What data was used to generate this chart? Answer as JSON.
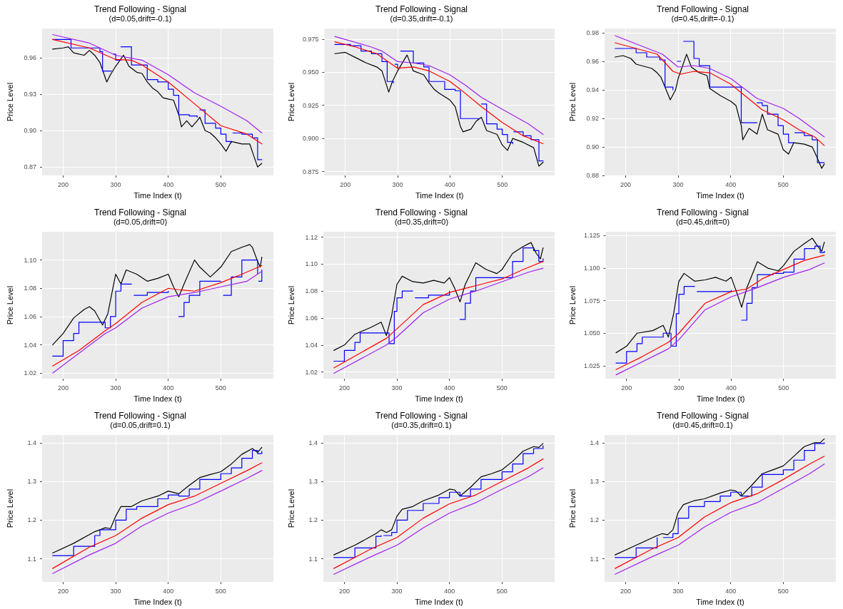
{
  "chart_data": [
    {
      "type": "line",
      "title": "Trend Following - Signal",
      "subtitle": "(d=0.05,drift=-0.1)",
      "xlabel": "Time Index (t)",
      "ylabel": "Price Level",
      "xlim": [
        160,
        600
      ],
      "xticks": [
        200,
        300,
        400,
        500
      ],
      "ylim": [
        0.863,
        0.984
      ],
      "yticks": [
        0.87,
        {
          "value": 0.9,
          "label": "0.90"
        },
        0.93,
        0.96
      ],
      "grid": true,
      "marker": "none",
      "series": [
        {
          "color": "#000000",
          "x": [
            180,
            200,
            210,
            220,
            240,
            250,
            260,
            270,
            283,
            290,
            300,
            315,
            325,
            340,
            350,
            360,
            370,
            380,
            390,
            400,
            410,
            420,
            425,
            435,
            445,
            455,
            460,
            470,
            480,
            490,
            500,
            510,
            520,
            540,
            555,
            562,
            570,
            578
          ],
          "values": [
            0.967,
            0.968,
            0.969,
            0.964,
            0.962,
            0.966,
            0.962,
            0.956,
            0.94,
            0.946,
            0.953,
            0.962,
            0.953,
            0.948,
            0.947,
            0.94,
            0.935,
            0.932,
            0.927,
            0.926,
            0.925,
            0.913,
            0.903,
            0.908,
            0.903,
            0.908,
            0.911,
            0.9,
            0.898,
            0.894,
            0.889,
            0.883,
            0.891,
            0.889,
            0.889,
            0.88,
            0.87,
            0.873
          ]
        },
        {
          "type": "step",
          "color": "#0000ff",
          "x": [
            180,
            210,
            215,
            265,
            270,
            275,
            292
          ],
          "values": [
            0.975,
            0.975,
            0.968,
            0.968,
            0.965,
            0.949,
            0.949
          ]
        },
        {
          "type": "step",
          "color": "#0000ff",
          "x": [
            295,
            300,
            310
          ],
          "values": [
            0.963,
            0.958,
            0.958
          ]
        },
        {
          "type": "step",
          "color": "#0000ff",
          "x": [
            310,
            320,
            330,
            350,
            360,
            380,
            400,
            410,
            420,
            440,
            455
          ],
          "values": [
            0.969,
            0.969,
            0.954,
            0.954,
            0.942,
            0.94,
            0.934,
            0.929,
            0.913,
            0.912,
            0.911
          ]
        },
        {
          "type": "step",
          "color": "#0000ff",
          "x": [
            460,
            470,
            490,
            500,
            510,
            520
          ],
          "values": [
            0.917,
            0.906,
            0.902,
            0.897,
            0.891,
            0.89
          ]
        },
        {
          "type": "step",
          "color": "#0000ff",
          "x": [
            523,
            540,
            560,
            570,
            578
          ],
          "values": [
            0.898,
            0.897,
            0.894,
            0.876,
            0.876
          ]
        },
        {
          "color": "#ff0000",
          "x": [
            180,
            250,
            300,
            330,
            350,
            400,
            450,
            500,
            550,
            578
          ],
          "values": [
            0.975,
            0.968,
            0.9585,
            0.958,
            0.954,
            0.94,
            0.922,
            0.904,
            0.897,
            0.889
          ]
        },
        {
          "color": "#a020f0",
          "x": [
            180,
            250,
            300,
            350,
            400,
            450,
            500,
            550,
            578
          ],
          "values": [
            0.979,
            0.972,
            0.962,
            0.958,
            0.946,
            0.931,
            0.92,
            0.908,
            0.898
          ]
        }
      ]
    },
    {
      "type": "line",
      "title": "Trend Following - Signal",
      "subtitle": "(d=0.35,drift=-0.1)",
      "xlabel": "Time Index (t)",
      "ylabel": "Price Level",
      "xlim": [
        160,
        600
      ],
      "xticks": [
        200,
        300,
        400,
        500
      ],
      "ylim": [
        0.872,
        0.983
      ],
      "yticks": [
        0.875,
        {
          "value": 0.9,
          "label": "0.900"
        },
        0.925,
        {
          "value": 0.95,
          "label": "0.950"
        },
        0.975
      ],
      "grid": true,
      "marker": "none",
      "series": [
        {
          "color": "#000000",
          "x": [
            180,
            200,
            220,
            240,
            260,
            270,
            283,
            290,
            300,
            318,
            330,
            350,
            360,
            370,
            380,
            400,
            410,
            420,
            425,
            440,
            450,
            460,
            470,
            490,
            500,
            510,
            520,
            540,
            560,
            570,
            578
          ],
          "values": [
            0.964,
            0.965,
            0.961,
            0.957,
            0.954,
            0.951,
            0.935,
            0.943,
            0.951,
            0.963,
            0.951,
            0.948,
            0.942,
            0.937,
            0.934,
            0.929,
            0.924,
            0.909,
            0.905,
            0.907,
            0.913,
            0.916,
            0.906,
            0.903,
            0.895,
            0.891,
            0.9,
            0.897,
            0.893,
            0.879,
            0.882
          ]
        },
        {
          "type": "step",
          "color": "#0000ff",
          "x": [
            180,
            210,
            230,
            250,
            270,
            280,
            292
          ],
          "values": [
            0.971,
            0.97,
            0.966,
            0.964,
            0.958,
            0.943,
            0.942
          ]
        },
        {
          "type": "step",
          "color": "#0000ff",
          "x": [
            295,
            300,
            305
          ],
          "values": [
            0.956,
            0.953,
            0.953
          ]
        },
        {
          "type": "step",
          "color": "#0000ff",
          "x": [
            306,
            325,
            330,
            350,
            360,
            380,
            390,
            410,
            420,
            455
          ],
          "values": [
            0.966,
            0.966,
            0.957,
            0.954,
            0.943,
            0.943,
            0.937,
            0.936,
            0.915,
            0.915
          ]
        },
        {
          "type": "step",
          "color": "#0000ff",
          "x": [
            460,
            470,
            490,
            500,
            510,
            520
          ],
          "values": [
            0.926,
            0.911,
            0.907,
            0.903,
            0.897,
            0.896
          ]
        },
        {
          "type": "step",
          "color": "#0000ff",
          "x": [
            522,
            540,
            555,
            570,
            578
          ],
          "values": [
            0.905,
            0.902,
            0.899,
            0.883,
            0.883
          ]
        },
        {
          "color": "#ff0000",
          "x": [
            180,
            220,
            260,
            300,
            330,
            360,
            400,
            420,
            460,
            500,
            540,
            578
          ],
          "values": [
            0.973,
            0.969,
            0.964,
            0.953,
            0.954,
            0.951,
            0.943,
            0.937,
            0.924,
            0.912,
            0.902,
            0.896
          ]
        },
        {
          "color": "#a020f0",
          "x": [
            180,
            250,
            270,
            300,
            330,
            360,
            400,
            430,
            460,
            500,
            550,
            578
          ],
          "values": [
            0.977,
            0.969,
            0.966,
            0.958,
            0.957,
            0.955,
            0.948,
            0.94,
            0.931,
            0.922,
            0.911,
            0.903
          ]
        }
      ]
    },
    {
      "type": "line",
      "title": "Trend Following - Signal",
      "subtitle": "(d=0.45,drift=-0.1)",
      "xlabel": "Time Index (t)",
      "ylabel": "Price Level",
      "xlim": [
        160,
        600
      ],
      "xticks": [
        200,
        300,
        400,
        500
      ],
      "ylim": [
        0.88,
        0.983
      ],
      "yticks": [
        0.88,
        {
          "value": 0.9,
          "label": "0.90"
        },
        0.92,
        0.94,
        0.96,
        0.98
      ],
      "grid": true,
      "marker": "none",
      "series": [
        {
          "color": "#000000",
          "x": [
            180,
            195,
            210,
            220,
            250,
            260,
            267,
            285,
            295,
            300,
            316,
            325,
            340,
            355,
            360,
            380,
            400,
            410,
            420,
            423,
            435,
            450,
            460,
            470,
            490,
            500,
            510,
            520,
            540,
            555,
            565,
            573,
            578
          ],
          "values": [
            0.963,
            0.964,
            0.962,
            0.958,
            0.955,
            0.952,
            0.949,
            0.933,
            0.94,
            0.948,
            0.965,
            0.956,
            0.952,
            0.95,
            0.941,
            0.936,
            0.932,
            0.929,
            0.915,
            0.905,
            0.913,
            0.909,
            0.923,
            0.912,
            0.909,
            0.898,
            0.895,
            0.903,
            0.902,
            0.9,
            0.892,
            0.885,
            0.888
          ]
        },
        {
          "type": "step",
          "color": "#0000ff",
          "x": [
            180,
            210,
            220,
            240,
            265,
            275,
            290
          ],
          "values": [
            0.969,
            0.969,
            0.966,
            0.963,
            0.961,
            0.942,
            0.94
          ]
        },
        {
          "type": "step",
          "color": "#0000ff",
          "x": [
            298,
            305
          ],
          "values": [
            0.96,
            0.96
          ]
        },
        {
          "type": "step",
          "color": "#0000ff",
          "x": [
            310,
            320,
            330,
            340,
            355,
            360,
            400,
            420,
            450
          ],
          "values": [
            0.974,
            0.974,
            0.962,
            0.957,
            0.957,
            0.942,
            0.942,
            0.917,
            0.917
          ]
        },
        {
          "type": "step",
          "color": "#0000ff",
          "x": [
            450,
            460,
            470,
            490,
            500,
            510,
            520
          ],
          "values": [
            0.931,
            0.929,
            0.923,
            0.915,
            0.909,
            0.903,
            0.903
          ]
        },
        {
          "type": "step",
          "color": "#0000ff",
          "x": [
            522,
            540,
            555,
            565,
            578
          ],
          "values": [
            0.91,
            0.908,
            0.905,
            0.889,
            0.889
          ]
        },
        {
          "color": "#ff0000",
          "x": [
            180,
            260,
            290,
            305,
            330,
            360,
            400,
            430,
            460,
            500,
            530,
            560,
            578
          ],
          "values": [
            0.973,
            0.965,
            0.953,
            0.951,
            0.953,
            0.952,
            0.944,
            0.935,
            0.926,
            0.919,
            0.912,
            0.907,
            0.901
          ]
        },
        {
          "color": "#a020f0",
          "x": [
            180,
            270,
            300,
            330,
            360,
            400,
            450,
            500,
            530,
            578
          ],
          "values": [
            0.978,
            0.965,
            0.956,
            0.957,
            0.955,
            0.948,
            0.934,
            0.927,
            0.92,
            0.907
          ]
        }
      ]
    },
    {
      "type": "line",
      "title": "Trend Following - Signal",
      "subtitle": "(d=0.05,drift=0)",
      "xlabel": "Time Index (t)",
      "ylabel": "Price Level",
      "xlim": [
        160,
        600
      ],
      "xticks": [
        200,
        300,
        400,
        500
      ],
      "ylim": [
        1.016,
        1.12
      ],
      "yticks": [
        1.02,
        1.04,
        1.06,
        1.08,
        {
          "value": 1.1,
          "label": "1.10"
        }
      ],
      "grid": true,
      "marker": "none",
      "series": [
        {
          "color": "#000000",
          "x": [
            180,
            200,
            220,
            240,
            250,
            260,
            275,
            285,
            300,
            310,
            320,
            340,
            360,
            380,
            400,
            410,
            420,
            430,
            450,
            460,
            480,
            500,
            520,
            540,
            555,
            560,
            570,
            575,
            578
          ],
          "values": [
            1.04,
            1.048,
            1.059,
            1.065,
            1.067,
            1.064,
            1.054,
            1.062,
            1.09,
            1.083,
            1.093,
            1.09,
            1.085,
            1.087,
            1.09,
            1.081,
            1.074,
            1.083,
            1.1,
            1.095,
            1.088,
            1.095,
            1.106,
            1.109,
            1.111,
            1.109,
            1.099,
            1.095,
            1.102
          ]
        },
        {
          "type": "step",
          "color": "#0000ff",
          "x": [
            180,
            200,
            220,
            230,
            265,
            280,
            290,
            300,
            310,
            330
          ],
          "values": [
            1.032,
            1.043,
            1.048,
            1.056,
            1.056,
            1.052,
            1.06,
            1.078,
            1.083,
            1.083
          ]
        },
        {
          "type": "step",
          "color": "#0000ff",
          "x": [
            335,
            360,
            400
          ],
          "values": [
            1.075,
            1.077,
            1.078
          ]
        },
        {
          "type": "step",
          "color": "#0000ff",
          "x": [
            420,
            430,
            440,
            455,
            460,
            500
          ],
          "values": [
            1.06,
            1.07,
            1.075,
            1.075,
            1.085,
            1.085
          ]
        },
        {
          "type": "step",
          "color": "#0000ff",
          "x": [
            505,
            520,
            540,
            560,
            570
          ],
          "values": [
            1.075,
            1.088,
            1.1,
            1.1,
            1.09
          ]
        },
        {
          "type": "step",
          "color": "#0000ff",
          "x": [
            572,
            578
          ],
          "values": [
            1.085,
            1.093
          ]
        },
        {
          "color": "#ff0000",
          "x": [
            180,
            230,
            280,
            300,
            350,
            400,
            420,
            450,
            500,
            540,
            578
          ],
          "values": [
            1.025,
            1.036,
            1.05,
            1.055,
            1.07,
            1.08,
            1.079,
            1.078,
            1.084,
            1.09,
            1.096
          ]
        },
        {
          "color": "#a020f0",
          "x": [
            180,
            280,
            300,
            350,
            400,
            450,
            500,
            550,
            578
          ],
          "values": [
            1.02,
            1.048,
            1.052,
            1.066,
            1.074,
            1.077,
            1.081,
            1.085,
            1.092
          ]
        }
      ]
    },
    {
      "type": "line",
      "title": "Trend Following - Signal",
      "subtitle": "(d=0.35,drift=0)",
      "xlabel": "Time Index (t)",
      "ylabel": "Price Level",
      "xlim": [
        160,
        600
      ],
      "xticks": [
        200,
        300,
        400,
        500
      ],
      "ylim": [
        1.015,
        1.124
      ],
      "yticks": [
        1.02,
        1.04,
        1.06,
        1.08,
        {
          "value": 1.1,
          "label": "1.10"
        },
        1.12
      ],
      "grid": true,
      "marker": "none",
      "series": [
        {
          "color": "#000000",
          "x": [
            180,
            200,
            220,
            250,
            270,
            280,
            290,
            300,
            310,
            330,
            350,
            370,
            390,
            400,
            410,
            420,
            430,
            450,
            470,
            490,
            500,
            520,
            540,
            555,
            565,
            573,
            578
          ],
          "values": [
            1.036,
            1.04,
            1.048,
            1.053,
            1.057,
            1.047,
            1.062,
            1.085,
            1.091,
            1.087,
            1.086,
            1.088,
            1.086,
            1.09,
            1.082,
            1.072,
            1.085,
            1.101,
            1.096,
            1.093,
            1.096,
            1.108,
            1.113,
            1.116,
            1.108,
            1.104,
            1.112
          ]
        },
        {
          "type": "step",
          "color": "#0000ff",
          "x": [
            180,
            200,
            220,
            230,
            270,
            285,
            295,
            300,
            310,
            330
          ],
          "values": [
            1.028,
            1.036,
            1.042,
            1.049,
            1.049,
            1.041,
            1.065,
            1.075,
            1.08,
            1.08
          ]
        },
        {
          "type": "step",
          "color": "#0000ff",
          "x": [
            335,
            360,
            400
          ],
          "values": [
            1.075,
            1.077,
            1.08
          ]
        },
        {
          "type": "step",
          "color": "#0000ff",
          "x": [
            420,
            430,
            440,
            450,
            480,
            500,
            520,
            540,
            560,
            570,
            578
          ],
          "values": [
            1.059,
            1.071,
            1.08,
            1.09,
            1.09,
            1.09,
            1.102,
            1.112,
            1.11,
            1.102,
            1.104
          ]
        },
        {
          "color": "#ff0000",
          "x": [
            180,
            230,
            280,
            300,
            350,
            400,
            430,
            460,
            500,
            540,
            578
          ],
          "values": [
            1.023,
            1.034,
            1.045,
            1.052,
            1.07,
            1.079,
            1.082,
            1.085,
            1.089,
            1.096,
            1.102
          ]
        },
        {
          "color": "#a020f0",
          "x": [
            180,
            280,
            300,
            350,
            400,
            450,
            500,
            550,
            578
          ],
          "values": [
            1.019,
            1.04,
            1.046,
            1.064,
            1.074,
            1.08,
            1.087,
            1.094,
            1.097
          ]
        }
      ]
    },
    {
      "type": "line",
      "title": "Trend Following - Signal",
      "subtitle": "(d=0.45,drift=0)",
      "xlabel": "Time Index (t)",
      "ylabel": "Price Level",
      "xlim": [
        160,
        600
      ],
      "xticks": [
        200,
        300,
        400,
        500
      ],
      "ylim": [
        1.015,
        1.128
      ],
      "yticks": [
        1.025,
        {
          "value": 1.05,
          "label": "1.050"
        },
        1.075,
        {
          "value": 1.1,
          "label": "1.100"
        },
        1.125
      ],
      "grid": true,
      "marker": "none",
      "series": [
        {
          "color": "#000000",
          "x": [
            180,
            200,
            220,
            250,
            270,
            280,
            290,
            300,
            310,
            330,
            350,
            370,
            390,
            400,
            410,
            420,
            430,
            450,
            470,
            490,
            500,
            520,
            540,
            555,
            565,
            573,
            578
          ],
          "values": [
            1.035,
            1.04,
            1.05,
            1.052,
            1.056,
            1.047,
            1.065,
            1.09,
            1.096,
            1.09,
            1.091,
            1.093,
            1.09,
            1.093,
            1.082,
            1.07,
            1.085,
            1.105,
            1.1,
            1.098,
            1.102,
            1.113,
            1.119,
            1.123,
            1.117,
            1.113,
            1.12
          ]
        },
        {
          "type": "step",
          "color": "#0000ff",
          "x": [
            180,
            200,
            220,
            230,
            270,
            285,
            295,
            300,
            310,
            330
          ],
          "values": [
            1.027,
            1.036,
            1.042,
            1.047,
            1.05,
            1.04,
            1.065,
            1.08,
            1.086,
            1.086
          ]
        },
        {
          "type": "step",
          "color": "#0000ff",
          "x": [
            335,
            360,
            400
          ],
          "values": [
            1.082,
            1.082,
            1.083
          ]
        },
        {
          "type": "step",
          "color": "#0000ff",
          "x": [
            420,
            430,
            440,
            450,
            480,
            500,
            520,
            540,
            560,
            570,
            578
          ],
          "values": [
            1.06,
            1.073,
            1.085,
            1.095,
            1.096,
            1.097,
            1.107,
            1.115,
            1.117,
            1.112,
            1.113
          ]
        },
        {
          "color": "#ff0000",
          "x": [
            180,
            230,
            280,
            300,
            350,
            400,
            430,
            460,
            500,
            540,
            578
          ],
          "values": [
            1.022,
            1.032,
            1.043,
            1.05,
            1.073,
            1.082,
            1.084,
            1.092,
            1.099,
            1.106,
            1.11
          ]
        },
        {
          "color": "#a020f0",
          "x": [
            180,
            280,
            300,
            350,
            400,
            450,
            500,
            550,
            578
          ],
          "values": [
            1.018,
            1.038,
            1.045,
            1.068,
            1.078,
            1.085,
            1.093,
            1.099,
            1.104
          ]
        }
      ]
    },
    {
      "type": "line",
      "title": "Trend Following - Signal",
      "subtitle": "(d=0.05,drift=0.1)",
      "xlabel": "Time Index (t)",
      "ylabel": "Price Level",
      "xlim": [
        160,
        600
      ],
      "xticks": [
        200,
        300,
        400,
        500
      ],
      "ylim": [
        1.04,
        1.42
      ],
      "yticks": [
        1.1,
        1.2,
        1.3,
        1.4
      ],
      "grid": true,
      "marker": "none",
      "series": [
        {
          "color": "#000000",
          "x": [
            180,
            220,
            260,
            280,
            290,
            300,
            310,
            330,
            350,
            380,
            400,
            420,
            440,
            460,
            480,
            500,
            520,
            540,
            560,
            570,
            578
          ],
          "values": [
            1.115,
            1.14,
            1.17,
            1.18,
            1.178,
            1.21,
            1.235,
            1.235,
            1.25,
            1.262,
            1.275,
            1.268,
            1.29,
            1.31,
            1.318,
            1.325,
            1.345,
            1.37,
            1.385,
            1.375,
            1.388
          ]
        },
        {
          "type": "step",
          "color": "#0000ff",
          "x": [
            180,
            220,
            260,
            270,
            290,
            300,
            320,
            340,
            380,
            400,
            420,
            440,
            460,
            500,
            520,
            540,
            560,
            570,
            578
          ],
          "values": [
            1.108,
            1.132,
            1.16,
            1.175,
            1.175,
            1.2,
            1.228,
            1.235,
            1.255,
            1.265,
            1.262,
            1.28,
            1.305,
            1.32,
            1.335,
            1.36,
            1.38,
            1.372,
            1.378
          ]
        },
        {
          "color": "#ff0000",
          "x": [
            180,
            250,
            300,
            350,
            400,
            450,
            500,
            550,
            578
          ],
          "values": [
            1.075,
            1.13,
            1.16,
            1.205,
            1.24,
            1.262,
            1.295,
            1.328,
            1.348
          ]
        },
        {
          "color": "#a020f0",
          "x": [
            180,
            250,
            300,
            350,
            400,
            450,
            500,
            550,
            578
          ],
          "values": [
            1.062,
            1.11,
            1.14,
            1.185,
            1.218,
            1.243,
            1.275,
            1.308,
            1.328
          ]
        }
      ]
    },
    {
      "type": "line",
      "title": "Trend Following - Signal",
      "subtitle": "(d=0.35,drift=0.1)",
      "xlabel": "Time Index (t)",
      "ylabel": "Price Level",
      "xlim": [
        160,
        600
      ],
      "xticks": [
        200,
        300,
        400,
        500
      ],
      "ylim": [
        1.04,
        1.42
      ],
      "yticks": [
        1.1,
        1.2,
        1.3,
        1.4
      ],
      "grid": true,
      "marker": "none",
      "series": [
        {
          "color": "#000000",
          "x": [
            180,
            220,
            260,
            270,
            280,
            290,
            300,
            310,
            330,
            350,
            380,
            400,
            410,
            420,
            440,
            460,
            480,
            500,
            520,
            540,
            560,
            570,
            578
          ],
          "values": [
            1.11,
            1.135,
            1.165,
            1.175,
            1.168,
            1.175,
            1.21,
            1.228,
            1.235,
            1.25,
            1.265,
            1.28,
            1.278,
            1.262,
            1.285,
            1.312,
            1.32,
            1.33,
            1.352,
            1.378,
            1.39,
            1.388,
            1.398
          ]
        },
        {
          "type": "step",
          "color": "#0000ff",
          "x": [
            180,
            220,
            260,
            270
          ],
          "values": [
            1.103,
            1.128,
            1.158,
            1.16
          ]
        },
        {
          "type": "step",
          "color": "#0000ff",
          "x": [
            275,
            290,
            300,
            320,
            350,
            380,
            400,
            420,
            440,
            460,
            500,
            520,
            540,
            560,
            570,
            578
          ],
          "values": [
            1.16,
            1.168,
            1.2,
            1.225,
            1.243,
            1.258,
            1.272,
            1.262,
            1.28,
            1.305,
            1.325,
            1.345,
            1.372,
            1.385,
            1.385,
            1.392
          ]
        },
        {
          "color": "#ff0000",
          "x": [
            180,
            250,
            300,
            350,
            400,
            450,
            500,
            550,
            578
          ],
          "values": [
            1.075,
            1.125,
            1.155,
            1.205,
            1.242,
            1.265,
            1.3,
            1.335,
            1.358
          ]
        },
        {
          "color": "#a020f0",
          "x": [
            180,
            250,
            300,
            350,
            400,
            450,
            500,
            550,
            578
          ],
          "values": [
            1.06,
            1.105,
            1.135,
            1.18,
            1.218,
            1.245,
            1.28,
            1.312,
            1.335
          ]
        }
      ]
    },
    {
      "type": "line",
      "title": "Trend Following - Signal",
      "subtitle": "(d=0.45,drift=0.1)",
      "xlabel": "Time Index (t)",
      "ylabel": "Price Level",
      "xlim": [
        160,
        600
      ],
      "xticks": [
        200,
        300,
        400,
        500
      ],
      "ylim": [
        1.04,
        1.42
      ],
      "yticks": [
        1.1,
        1.2,
        1.3,
        1.4
      ],
      "grid": true,
      "marker": "none",
      "series": [
        {
          "color": "#000000",
          "x": [
            180,
            220,
            260,
            270,
            280,
            290,
            300,
            310,
            330,
            350,
            380,
            400,
            410,
            420,
            440,
            460,
            480,
            500,
            520,
            540,
            560,
            570,
            578
          ],
          "values": [
            1.11,
            1.135,
            1.16,
            1.165,
            1.162,
            1.175,
            1.22,
            1.24,
            1.25,
            1.255,
            1.27,
            1.278,
            1.275,
            1.262,
            1.29,
            1.32,
            1.33,
            1.34,
            1.365,
            1.39,
            1.4,
            1.4,
            1.41
          ]
        },
        {
          "type": "step",
          "color": "#0000ff",
          "x": [
            180,
            220,
            260
          ],
          "values": [
            1.103,
            1.128,
            1.155
          ]
        },
        {
          "type": "step",
          "color": "#0000ff",
          "x": [
            272,
            290,
            300,
            320,
            350,
            380,
            400,
            420,
            440,
            460,
            500,
            520,
            540,
            560,
            578
          ],
          "values": [
            1.155,
            1.165,
            1.205,
            1.235,
            1.248,
            1.262,
            1.272,
            1.262,
            1.285,
            1.318,
            1.33,
            1.355,
            1.38,
            1.398,
            1.4
          ]
        },
        {
          "color": "#ff0000",
          "x": [
            180,
            250,
            300,
            350,
            400,
            450,
            500,
            550,
            578
          ],
          "values": [
            1.075,
            1.125,
            1.155,
            1.208,
            1.245,
            1.268,
            1.305,
            1.345,
            1.365
          ]
        },
        {
          "color": "#a020f0",
          "x": [
            180,
            250,
            300,
            350,
            400,
            450,
            500,
            550,
            578
          ],
          "values": [
            1.06,
            1.105,
            1.135,
            1.182,
            1.22,
            1.245,
            1.282,
            1.32,
            1.345
          ]
        }
      ]
    }
  ]
}
